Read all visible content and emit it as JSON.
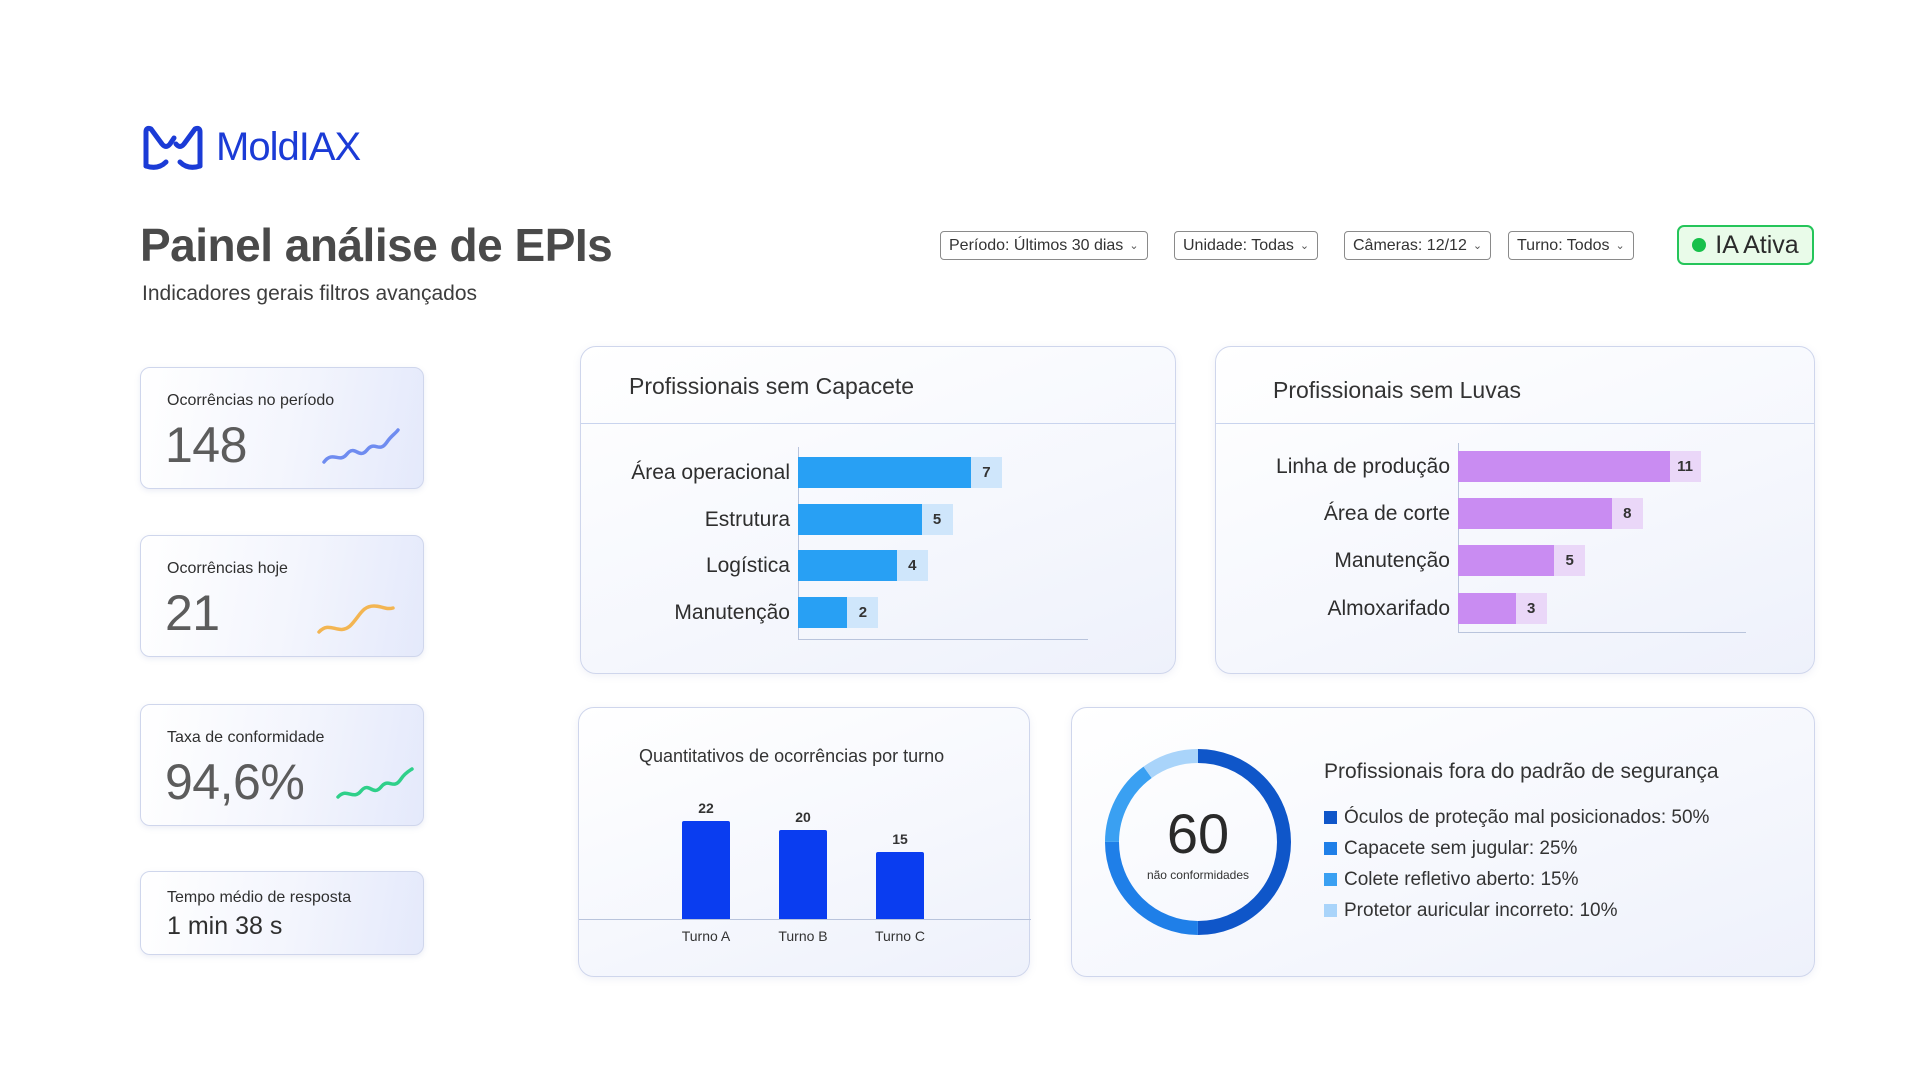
{
  "brand": {
    "name": "MoldIAX"
  },
  "header": {
    "title": "Painel análise de EPIs",
    "subtitle": "Indicadores gerais filtros avançados"
  },
  "filters": [
    {
      "label": "Período: Últimos 30 dias"
    },
    {
      "label": "Unidade: Todas"
    },
    {
      "label": "Câmeras: 12/12"
    },
    {
      "label": "Turno: Todos"
    }
  ],
  "status": {
    "label": "IA Ativa",
    "color": "#17c04a"
  },
  "kpis": [
    {
      "label": "Ocorrências no período",
      "value": "148",
      "spark_color": "#6f8cf0"
    },
    {
      "label": "Ocorrências hoje",
      "value": "21",
      "spark_color": "#f3b552"
    },
    {
      "label": "Taxa de conformidade",
      "value": "94,6%",
      "spark_color": "#2fd08a"
    },
    {
      "label": "Tempo médio de resposta",
      "value": "1 min 38 s"
    }
  ],
  "capacete": {
    "title": "Profissionais sem Capacete",
    "color": "#28a0f4",
    "tail_color": "#cfe6fb",
    "max": 10,
    "items": [
      {
        "label": "Área operacional",
        "value": 7
      },
      {
        "label": "Estrutura",
        "value": 5
      },
      {
        "label": "Logística",
        "value": 4
      },
      {
        "label": "Manutenção",
        "value": 2
      }
    ]
  },
  "luvas": {
    "title": "Profissionais sem Luvas",
    "color": "#c98cf2",
    "tail_color": "#ead7f8",
    "max": 13,
    "items": [
      {
        "label": "Linha de produção",
        "value": 11
      },
      {
        "label": "Área de corte",
        "value": 8
      },
      {
        "label": "Manutenção",
        "value": 5
      },
      {
        "label": "Almoxarifado",
        "value": 3
      }
    ]
  },
  "chart_data": {
    "type": "bar",
    "title": "Quantitativos de ocorrências por turno",
    "categories": [
      "Turno A",
      "Turno B",
      "Turno C"
    ],
    "values": [
      22,
      20,
      15
    ],
    "ylim": [
      0,
      25
    ],
    "color": "#0a3df0"
  },
  "padrao": {
    "title": "Profissionais fora do padrão de segurança",
    "total": "60",
    "caption": "não conformidades",
    "items": [
      {
        "label": "Óculos de proteção mal posicionados: 50%",
        "pct": 50,
        "color": "#0f56c9"
      },
      {
        "label": "Capacete sem jugular: 25%",
        "pct": 25,
        "color": "#1f7fe8"
      },
      {
        "label": "Colete refletivo aberto: 15%",
        "pct": 15,
        "color": "#3aa0f2"
      },
      {
        "label": "Protetor auricular incorreto: 10%",
        "pct": 10,
        "color": "#a9d4fa"
      }
    ]
  }
}
